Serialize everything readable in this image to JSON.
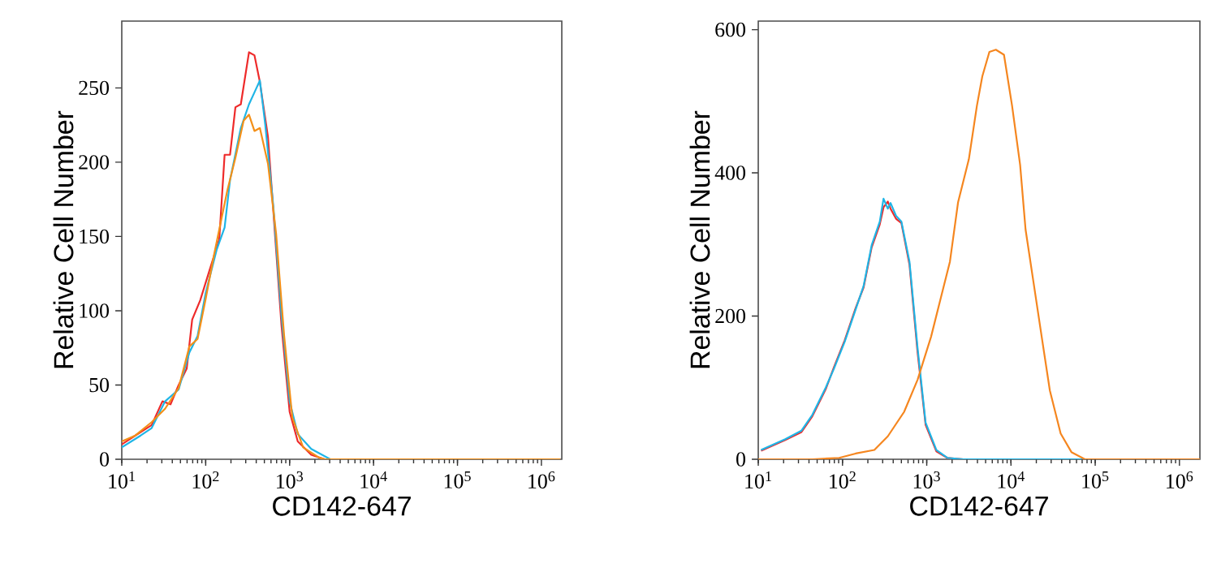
{
  "chart_data": [
    {
      "type": "line",
      "xlabel": "CD142-647",
      "ylabel": "Relative Cell Number",
      "log": "x",
      "xlim": [
        10,
        1750000
      ],
      "ylim": [
        0,
        295
      ],
      "xticks": [
        {
          "value": 10,
          "label": "10$^{1}$"
        },
        {
          "value": 100,
          "label": "10$^{2}$"
        },
        {
          "value": 1000,
          "label": "10$^{3}$"
        },
        {
          "value": 10000,
          "label": "10$^{4}$"
        },
        {
          "value": 100000,
          "label": "10$^{5}$"
        },
        {
          "value": 1000000,
          "label": "10$^{6}$"
        }
      ],
      "yticks": [
        0,
        50,
        100,
        150,
        200,
        250
      ],
      "series": [
        {
          "color": "#ee2a2a",
          "x": [
            10,
            14.5,
            22.7,
            30.5,
            38.1,
            47.6,
            59.4,
            69,
            86,
            108,
            145,
            168,
            195,
            226,
            262,
            328,
            381,
            442,
            552,
            640,
            800,
            1000,
            1250,
            1810,
            2620,
            1680000
          ],
          "values": [
            10,
            16,
            23,
            39,
            37,
            50,
            61,
            94,
            107,
            125,
            148,
            205,
            205,
            237,
            239,
            274,
            272,
            254,
            217,
            167,
            90,
            32,
            12,
            3,
            0,
            0
          ]
        },
        {
          "color": "#1fb5e6",
          "x": [
            10,
            16.8,
            22.7,
            32.8,
            47.6,
            64,
            80,
            100,
            135,
            168,
            195,
            262,
            328,
            381,
            442,
            513,
            640,
            800,
            1000,
            1250,
            1810,
            3050,
            1680000
          ],
          "values": [
            8,
            16,
            21,
            39,
            47,
            72,
            83,
            112,
            141,
            156,
            188,
            223,
            239,
            247,
            255,
            225,
            170,
            97,
            39,
            17,
            7,
            0,
            0
          ]
        },
        {
          "color": "#f39019",
          "x": [
            10,
            14.5,
            22.7,
            32.8,
            47.6,
            64,
            80,
            100,
            125,
            181,
            226,
            283,
            328,
            381,
            442,
            552,
            690,
            861,
            1077,
            1450,
            2260,
            2620,
            1680000
          ],
          "values": [
            12,
            16,
            25,
            34,
            48,
            76,
            81,
            108,
            137,
            181,
            203,
            228,
            232,
            221,
            223,
            199,
            152,
            83,
            28,
            8,
            1,
            0,
            0
          ]
        }
      ]
    },
    {
      "type": "line",
      "xlabel": "CD142-647",
      "ylabel": "Relative Cell Number",
      "log": "x",
      "xlim": [
        10,
        1750000
      ],
      "ylim": [
        0,
        612
      ],
      "xticks": [
        {
          "value": 10,
          "label": "10$^{1}$"
        },
        {
          "value": 100,
          "label": "10$^{2}$"
        },
        {
          "value": 1000,
          "label": "10$^{3}$"
        },
        {
          "value": 10000,
          "label": "10$^{4}$"
        },
        {
          "value": 100000,
          "label": "10$^{5}$"
        },
        {
          "value": 1000000,
          "label": "10$^{6}$"
        }
      ],
      "yticks": [
        0,
        200,
        400,
        600
      ],
      "series": [
        {
          "color": "#ee2a2a",
          "x": [
            10.8,
            20.9,
            32.6,
            43.8,
            63.2,
            78.8,
            106,
            143,
            178,
            222,
            277,
            307,
            345,
            372,
            432,
            500,
            624,
            778,
            970,
            1303,
            1753,
            2729,
            1750000
          ],
          "values": [
            12,
            27,
            38,
            60,
            98,
            128,
            166,
            211,
            240,
            296,
            328,
            352,
            360,
            350,
            336,
            330,
            272,
            150,
            48,
            11,
            2,
            0,
            0
          ]
        },
        {
          "color": "#1fb5e6",
          "x": [
            10.8,
            20.9,
            32.6,
            43.8,
            63.2,
            78.8,
            106,
            143,
            178,
            222,
            277,
            307,
            345,
            372,
            432,
            500,
            624,
            778,
            970,
            1303,
            1753,
            2729,
            1750000
          ],
          "values": [
            13,
            28,
            40,
            62,
            100,
            126,
            164,
            209,
            242,
            299,
            332,
            364,
            350,
            358,
            340,
            332,
            276,
            156,
            51,
            13,
            2,
            0,
            0
          ]
        },
        {
          "color": "#f5861f",
          "x": [
            10,
            43.8,
            91.5,
            143,
            239,
            345,
            538,
            778,
            1125,
            1510,
            1886,
            2356,
            3162,
            3945,
            4571,
            5543,
            6616,
            8260,
            10300,
            12850,
            14900,
            18580,
            23170,
            28950,
            38900,
            52200,
            75500,
            1750000
          ],
          "values": [
            0,
            0,
            2,
            8,
            13,
            32,
            66,
            111,
            171,
            231,
            276,
            359,
            419,
            494,
            535,
            569,
            572,
            565,
            494,
            411,
            321,
            246,
            171,
            96,
            36,
            10,
            0,
            0
          ]
        }
      ]
    }
  ]
}
